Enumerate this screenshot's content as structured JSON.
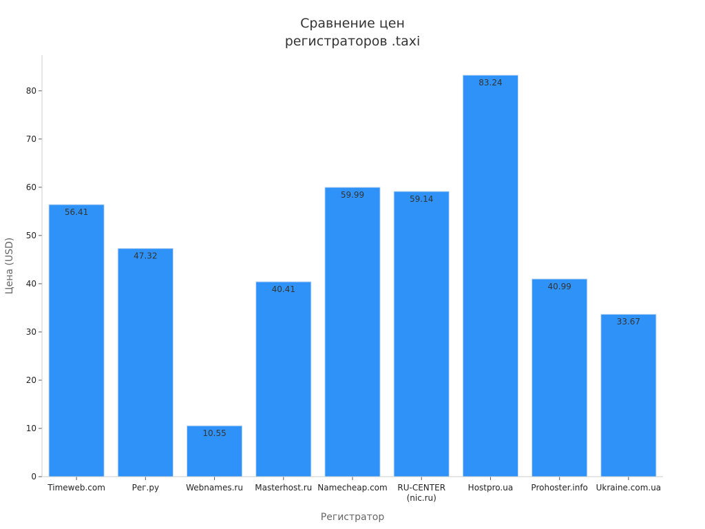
{
  "chart_data": {
    "type": "bar",
    "title_lines": [
      "Сравнение цен",
      "регистраторов .taxi"
    ],
    "xlabel": "Регистратор",
    "ylabel": "Цена (USD)",
    "ylim": [
      0,
      87.4
    ],
    "yticks": [
      0,
      10,
      20,
      30,
      40,
      50,
      60,
      70,
      80
    ],
    "grid": false,
    "legend": "none",
    "bar_color": "#2f92f8",
    "bar_edge_color": "#c8dcf2",
    "categories": [
      [
        "Timeweb.com"
      ],
      [
        "Рег.ру"
      ],
      [
        "Webnames.ru"
      ],
      [
        "Masterhost.ru"
      ],
      [
        "Namecheap.com"
      ],
      [
        "RU-CENTER",
        "(nic.ru)"
      ],
      [
        "Hostpro.ua"
      ],
      [
        "Prohoster.info"
      ],
      [
        "Ukraine.com.ua"
      ]
    ],
    "values": [
      56.41,
      47.32,
      10.55,
      40.41,
      59.99,
      59.14,
      83.24,
      40.99,
      33.67
    ],
    "data_labels": [
      "56.41",
      "47.32",
      "10.55",
      "40.41",
      "59.99",
      "59.14",
      "83.24",
      "40.99",
      "33.67"
    ]
  }
}
